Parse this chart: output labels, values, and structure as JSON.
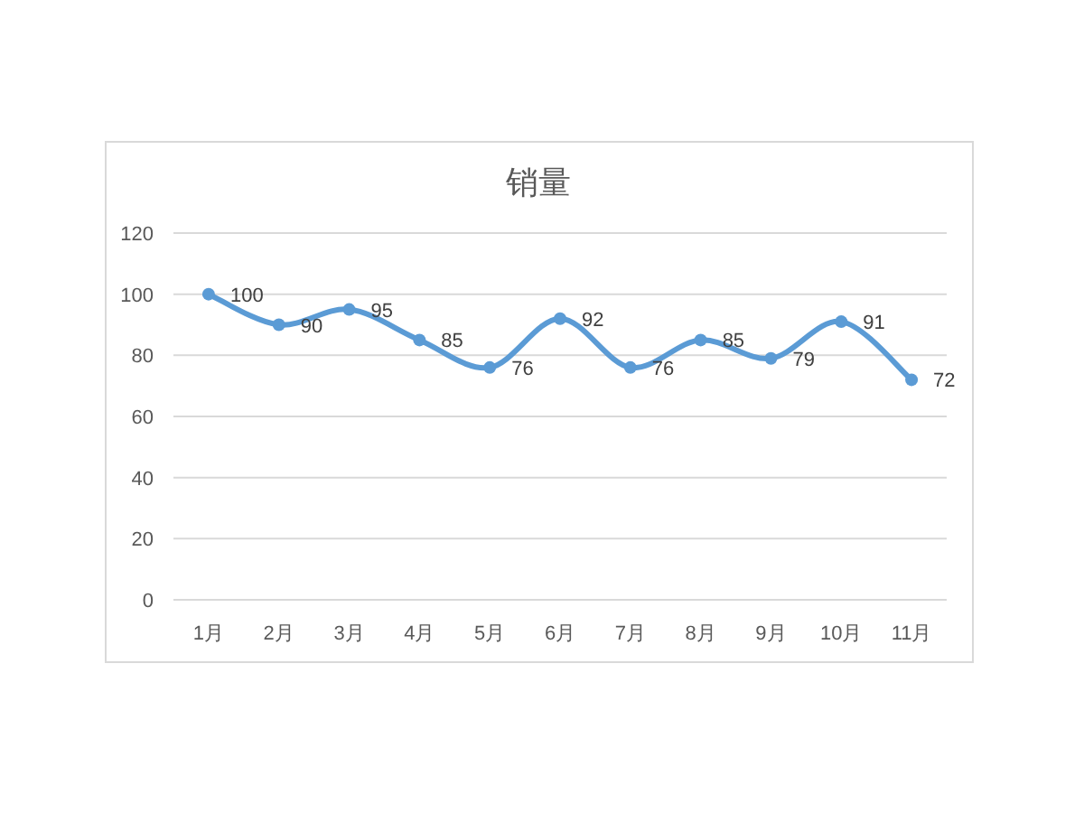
{
  "chart_data": {
    "type": "line",
    "title": "销量",
    "categories": [
      "1月",
      "2月",
      "3月",
      "4月",
      "5月",
      "6月",
      "7月",
      "8月",
      "9月",
      "10月",
      "11月"
    ],
    "series": [
      {
        "color": "#5b9bd5",
        "values": [
          100,
          90,
          95,
          85,
          76,
          92,
          76,
          85,
          79,
          91,
          72
        ]
      }
    ],
    "ylim": [
      0,
      120
    ],
    "yticks": [
      0,
      20,
      40,
      60,
      80,
      100,
      120
    ],
    "grid": "y",
    "data_labels": true,
    "marker": "circle",
    "line_style": "solid"
  }
}
